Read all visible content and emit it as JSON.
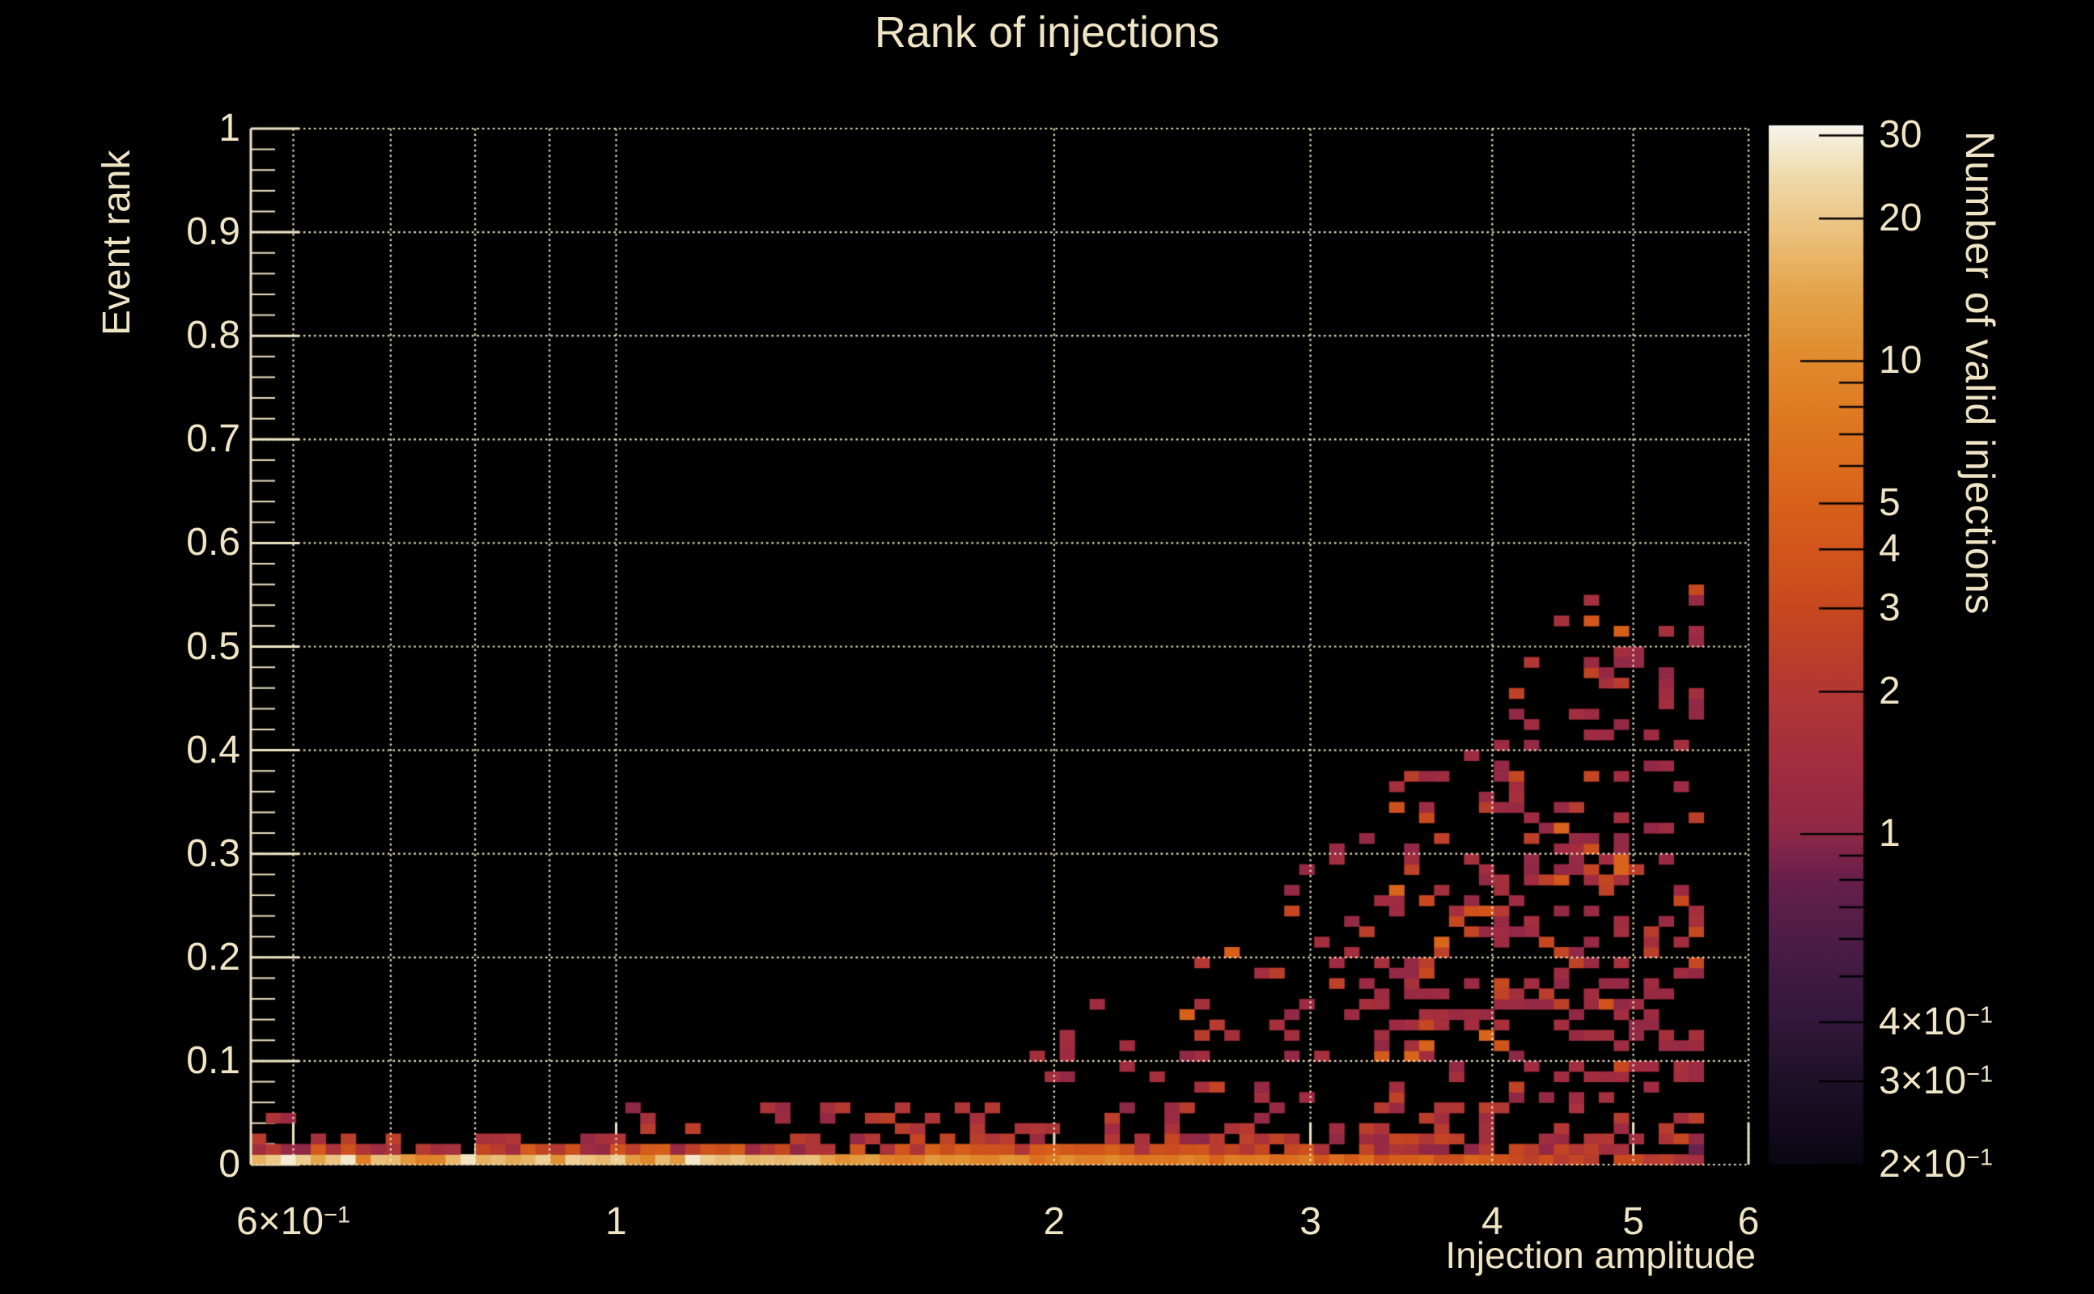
{
  "title": "Rank of injections",
  "colors": {
    "background": "#000000",
    "text": "#efe4c4",
    "grid": "#efe6c8",
    "axis": "#f0e5c6",
    "colorbar_tick": "#000000"
  },
  "chart_data": {
    "type": "heatmap",
    "title": "Rank of injections",
    "xlabel": "Injection amplitude",
    "ylabel": "Event rank",
    "zlabel": "Number of valid injections",
    "x_scale": "log",
    "x_range": [
      0.561,
      6.0
    ],
    "y_scale": "linear",
    "y_range": [
      0,
      1
    ],
    "z_scale": "log",
    "z_range": [
      0.2,
      31.5
    ],
    "nx": 100,
    "ny": 100,
    "grid": "on",
    "x_ticks": [
      {
        "v": 0.6,
        "text": "6×10",
        "exp": "−1"
      },
      {
        "v": 1,
        "text": "1"
      },
      {
        "v": 2,
        "text": "2"
      },
      {
        "v": 3,
        "text": "3"
      },
      {
        "v": 4,
        "text": "4"
      },
      {
        "v": 5,
        "text": "5"
      },
      {
        "v": 6,
        "text": "6"
      }
    ],
    "x_grid": [
      0.6,
      0.7,
      0.8,
      0.9,
      1,
      2,
      3,
      4,
      5,
      6
    ],
    "x_medium_ticks": [
      0.7,
      0.8,
      0.9
    ],
    "y_ticks": [
      {
        "v": 0,
        "text": "0"
      },
      {
        "v": 0.1,
        "text": "0.1"
      },
      {
        "v": 0.2,
        "text": "0.2"
      },
      {
        "v": 0.3,
        "text": "0.3"
      },
      {
        "v": 0.4,
        "text": "0.4"
      },
      {
        "v": 0.5,
        "text": "0.5"
      },
      {
        "v": 0.6,
        "text": "0.6"
      },
      {
        "v": 0.7,
        "text": "0.7"
      },
      {
        "v": 0.8,
        "text": "0.8"
      },
      {
        "v": 0.9,
        "text": "0.9"
      },
      {
        "v": 1,
        "text": "1"
      }
    ],
    "y_minor_step": 0.02,
    "z_ticks": [
      {
        "v": 30,
        "text": "30"
      },
      {
        "v": 20,
        "text": "20"
      },
      {
        "v": 10,
        "text": "10"
      },
      {
        "v": 5,
        "text": "5"
      },
      {
        "v": 4,
        "text": "4"
      },
      {
        "v": 3,
        "text": "3"
      },
      {
        "v": 2,
        "text": "2"
      },
      {
        "v": 1,
        "text": "1"
      },
      {
        "v": 0.4,
        "text": "4×10",
        "exp": "−1"
      },
      {
        "v": 0.3,
        "text": "3×10",
        "exp": "−1"
      },
      {
        "v": 0.2,
        "text": "2×10",
        "exp": "−1"
      }
    ],
    "z_minor_ticks": [
      9,
      8,
      7,
      6,
      0.9,
      0.8,
      0.7,
      0.6,
      0.5
    ],
    "z_decade_ticks": [
      10,
      1
    ],
    "palette_stops": [
      {
        "v": 0.2,
        "color": "#0a0612"
      },
      {
        "v": 0.3,
        "color": "#1e1129"
      },
      {
        "v": 0.4,
        "color": "#33173b"
      },
      {
        "v": 0.5,
        "color": "#401a42"
      },
      {
        "v": 0.6,
        "color": "#4d1d47"
      },
      {
        "v": 0.8,
        "color": "#661f4c"
      },
      {
        "v": 1.0,
        "color": "#8e2847"
      },
      {
        "v": 1.3,
        "color": "#9e2b41"
      },
      {
        "v": 2.0,
        "color": "#b23734"
      },
      {
        "v": 3.0,
        "color": "#c7481f"
      },
      {
        "v": 4.0,
        "color": "#d2561b"
      },
      {
        "v": 5.0,
        "color": "#d8611a"
      },
      {
        "v": 7.0,
        "color": "#dd741f"
      },
      {
        "v": 10,
        "color": "#e18a2c"
      },
      {
        "v": 14,
        "color": "#e5a54b"
      },
      {
        "v": 20,
        "color": "#ecc788"
      },
      {
        "v": 25,
        "color": "#f0dcae"
      },
      {
        "v": 30,
        "color": "#f5efde"
      },
      {
        "v": 31.5,
        "color": "#f8f5ec"
      }
    ],
    "synthesis": {
      "seed": 42,
      "data_x_max": 5.56,
      "scatter_start_amp": 1.6,
      "scatter_max_rank_by_amp": [
        [
          1.6,
          0.03
        ],
        [
          2.0,
          0.12
        ],
        [
          2.5,
          0.2
        ],
        [
          3.0,
          0.3
        ],
        [
          3.5,
          0.38
        ],
        [
          4.0,
          0.45
        ],
        [
          5.0,
          0.56
        ],
        [
          5.56,
          0.57
        ]
      ],
      "scatter_density_by_amp": [
        [
          1.6,
          0.1
        ],
        [
          2.0,
          0.14
        ],
        [
          3.0,
          0.2
        ],
        [
          4.0,
          0.26
        ],
        [
          5.0,
          0.3
        ],
        [
          5.56,
          0.3
        ]
      ],
      "row0_value_by_amp": [
        [
          0.56,
          15
        ],
        [
          1.0,
          16
        ],
        [
          1.5,
          12
        ],
        [
          2.0,
          8
        ],
        [
          3.0,
          6
        ],
        [
          4.0,
          4
        ],
        [
          4.5,
          3
        ],
        [
          5.0,
          2.5
        ],
        [
          5.56,
          2
        ]
      ],
      "row1_value_by_amp": [
        [
          0.56,
          3.2
        ],
        [
          1.5,
          3.2
        ],
        [
          2.0,
          3.5
        ],
        [
          3.0,
          2.5
        ],
        [
          4.0,
          2.0
        ],
        [
          5.0,
          1.5
        ],
        [
          5.56,
          1.2
        ]
      ],
      "row1_presence_by_amp": [
        [
          0.56,
          0.95
        ],
        [
          2.8,
          0.92
        ],
        [
          4.2,
          0.75
        ],
        [
          5.56,
          0.55
        ]
      ],
      "row2_presence_by_amp": [
        [
          0.56,
          0.38
        ],
        [
          1.6,
          0.5
        ],
        [
          2.8,
          0.65
        ],
        [
          4.2,
          0.55
        ],
        [
          5.56,
          0.5
        ]
      ],
      "row345_presence_by_amp": [
        [
          0.56,
          0.05
        ],
        [
          1.6,
          0.3
        ],
        [
          2.2,
          0.42
        ],
        [
          2.8,
          0.38
        ],
        [
          5.56,
          0.3
        ]
      ],
      "row0_white_spike_prob": 0.1,
      "row0_orange_dip_prob": 0.08,
      "row0_gap_prob_high_amp": 0.18,
      "scatter_value_weights": {
        "count_1": 0.8,
        "count_2": 0.14,
        "count_3_to_5": 0.06
      },
      "wedge_boost_region": {
        "amp": [
          1.6,
          3.0
        ],
        "rank_max": 0.07
      }
    },
    "observed_features": [
      "Dense bright band of high counts (10-30) hugging rank 0 across all amplitudes; brightest (near-white, ~25-30) between amplitude 0.7 and 1.6",
      "Second row of orange cells (counts ~2-6) just above the bottom band for all amplitudes",
      "Bottom band dims toward high amplitude: counts drop to 1-4 with gaps above amplitude ~4.5",
      "Scattered single-count (maroon) cells form a triangular wedge starting near amplitude 1.6, reaching rank ~0.12 at amplitude 2, ~0.3 at 3, ~0.45 at 4, up to ~0.56 near amplitude 5-5.5",
      "Occasional orange cells (counts 2-5) mixed into the scatter, mostly below rank 0.15",
      "No data beyond amplitude ~5.56; plot background is pure black"
    ]
  }
}
